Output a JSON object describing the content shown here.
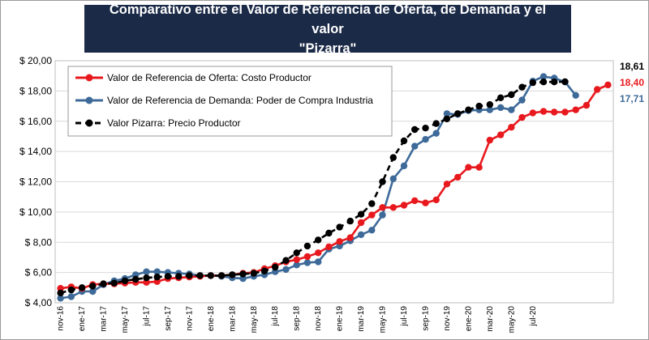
{
  "title": "Comparativo entre el Valor de Referencia de Oferta, de Demanda y el valor\n\"Pizarra\"",
  "chart_data": {
    "type": "line",
    "title": "Comparativo entre el Valor de Referencia de Oferta, de Demanda y el valor \"Pizarra\"",
    "xlabel": "",
    "ylabel": "",
    "ylim": [
      4,
      20
    ],
    "y_ticks": [
      "$ 4,00",
      "$ 6,00",
      "$ 8,00",
      "$ 10,00",
      "$ 12,00",
      "$ 14,00",
      "$ 16,00",
      "$ 18,00",
      "$ 20,00"
    ],
    "y_tick_values": [
      4,
      6,
      8,
      10,
      12,
      14,
      16,
      18,
      20
    ],
    "x_tick_labels": [
      "nov-16",
      "ene-17",
      "mar-17",
      "may-17",
      "jul-17",
      "sep-17",
      "nov-17",
      "ene-18",
      "mar-18",
      "may-18",
      "jul-18",
      "sep-18",
      "nov-18",
      "ene-19",
      "mar-19",
      "may-19",
      "jul-19",
      "sep-19",
      "nov-19",
      "ene-20",
      "mar-20",
      "may-20",
      "jul-20"
    ],
    "x_start": "nov-16",
    "grid": true,
    "legend_position": "top-left",
    "series": [
      {
        "name": "Valor de Referencia de Oferta: Costo Productor",
        "color": "#e8191e",
        "style": "solid",
        "end_label": "18,40",
        "values": [
          4.95,
          5.05,
          4.95,
          5.2,
          5.25,
          5.25,
          5.3,
          5.35,
          5.35,
          5.4,
          5.6,
          5.65,
          5.7,
          5.75,
          5.8,
          5.8,
          5.85,
          5.95,
          6.0,
          6.25,
          6.45,
          6.7,
          6.85,
          7.05,
          7.3,
          7.7,
          8.05,
          8.3,
          9.3,
          9.8,
          10.3,
          10.3,
          10.45,
          10.75,
          10.6,
          10.8,
          11.85,
          12.3,
          12.95,
          12.95,
          14.75,
          15.1,
          15.6,
          16.25,
          16.55,
          16.65,
          16.6,
          16.6,
          16.75,
          17.05,
          18.1,
          18.4
        ]
      },
      {
        "name": "Valor de Referencia de Demanda: Poder de Compra Industria",
        "color": "#3d6a99",
        "style": "solid",
        "end_label": "17,71",
        "values": [
          4.3,
          4.4,
          4.75,
          4.75,
          5.2,
          5.45,
          5.6,
          5.85,
          6.05,
          6.05,
          6.0,
          5.95,
          5.9,
          5.8,
          5.8,
          5.75,
          5.65,
          5.6,
          5.75,
          5.85,
          6.05,
          6.2,
          6.5,
          6.65,
          6.7,
          7.55,
          7.75,
          8.1,
          8.5,
          8.8,
          9.8,
          12.2,
          13.05,
          14.35,
          14.8,
          15.2,
          16.5,
          16.45,
          16.7,
          16.75,
          16.75,
          16.9,
          16.75,
          17.4,
          18.65,
          18.95,
          18.85,
          18.6,
          17.71
        ]
      },
      {
        "name": "Valor Pizarra: Precio Productor",
        "color": "#000000",
        "style": "dashed",
        "end_label": "18,61",
        "values": [
          4.65,
          4.85,
          5.0,
          5.1,
          5.25,
          5.3,
          5.45,
          5.55,
          5.65,
          5.7,
          5.75,
          5.75,
          5.8,
          5.8,
          5.8,
          5.8,
          5.85,
          5.9,
          5.95,
          6.1,
          6.35,
          6.8,
          7.3,
          7.75,
          8.15,
          8.6,
          9.0,
          9.4,
          9.85,
          10.55,
          12.0,
          13.6,
          14.7,
          15.45,
          15.55,
          15.85,
          16.15,
          16.5,
          16.75,
          17.0,
          17.1,
          17.55,
          17.75,
          18.25,
          18.55,
          18.6,
          18.6,
          18.61
        ]
      }
    ]
  }
}
